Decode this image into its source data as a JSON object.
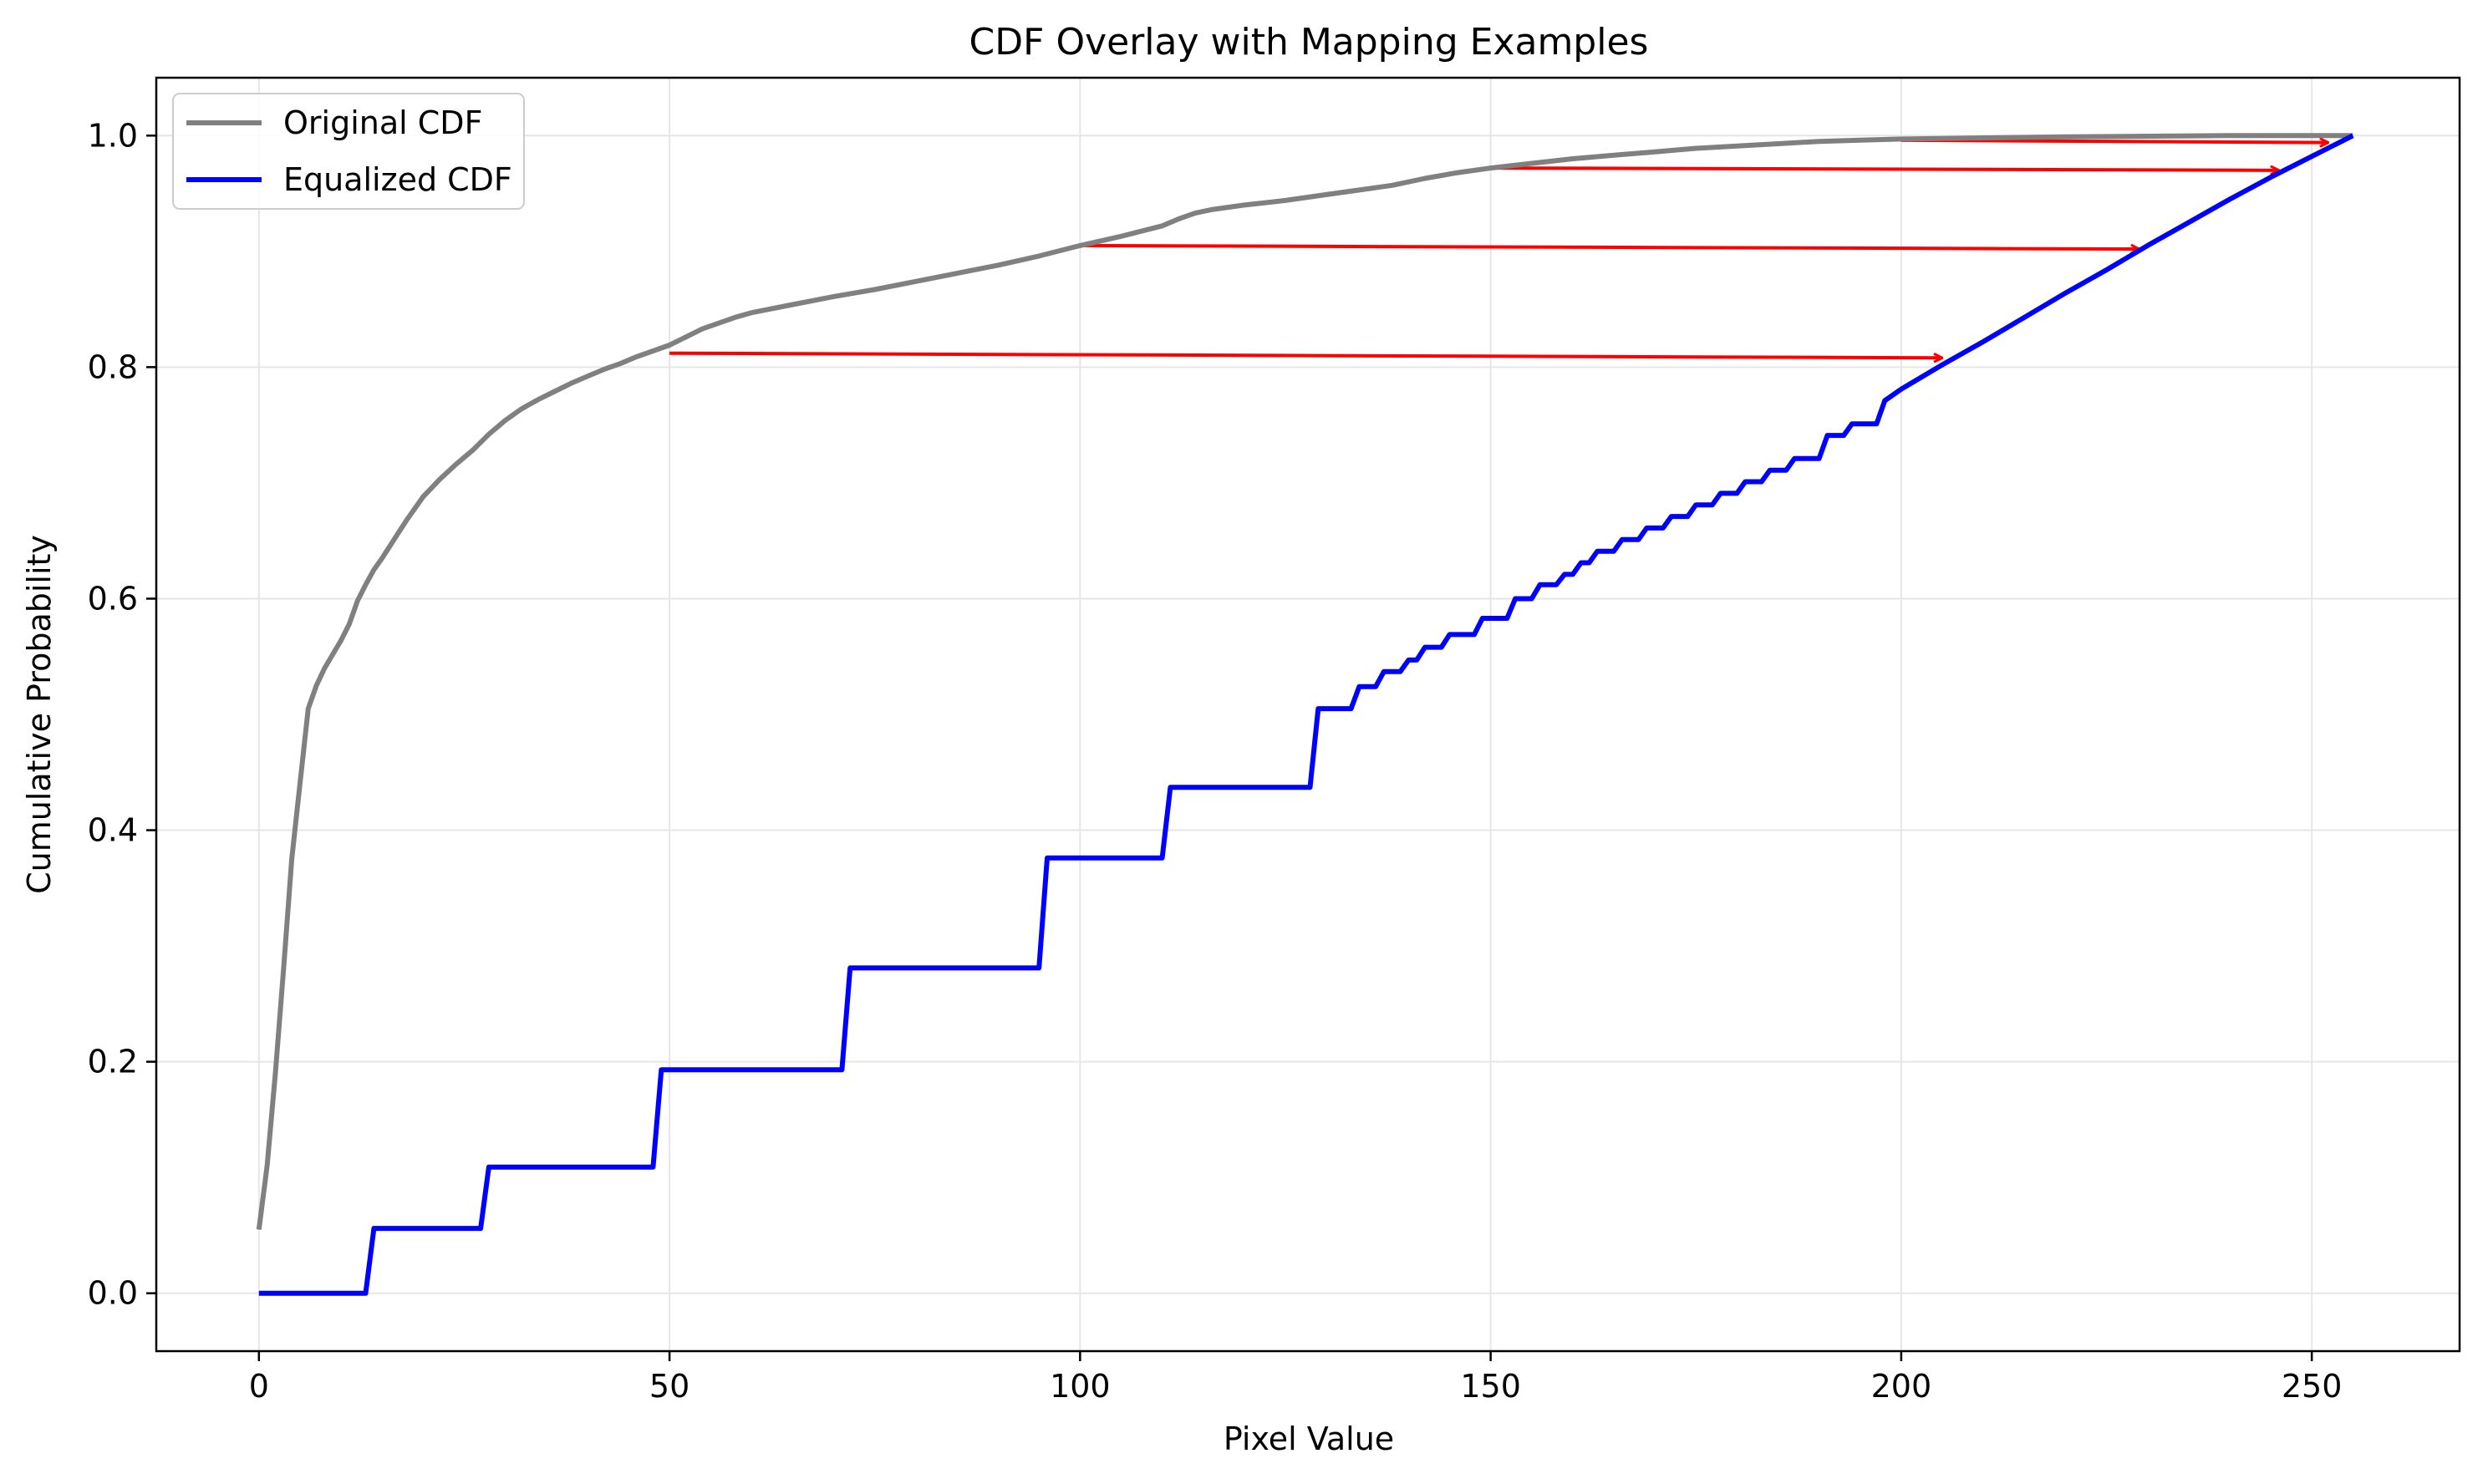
{
  "chart_data": {
    "type": "line",
    "title": "CDF Overlay with Mapping Examples",
    "xlabel": "Pixel Value",
    "ylabel": "Cumulative Probability",
    "xlim": [
      -12.5,
      268
    ],
    "ylim": [
      -0.05,
      1.05
    ],
    "xticks": [
      0,
      50,
      100,
      150,
      200,
      250
    ],
    "xtick_labels": [
      "0",
      "50",
      "100",
      "150",
      "200",
      "250"
    ],
    "yticks": [
      0.0,
      0.2,
      0.4,
      0.6,
      0.8,
      1.0
    ],
    "ytick_labels": [
      "0.0",
      "0.2",
      "0.4",
      "0.6",
      "0.8",
      "1.0"
    ],
    "grid": true,
    "legend_position": "top-left",
    "series": [
      {
        "name": "Original CDF",
        "color": "#808080",
        "x": [
          0,
          1,
          2,
          3,
          4,
          5,
          6,
          7,
          8,
          9,
          10,
          11,
          12,
          13,
          14,
          15,
          16,
          17,
          18,
          19,
          20,
          22,
          24,
          26,
          28,
          30,
          32,
          34,
          36,
          38,
          40,
          42,
          44,
          46,
          48,
          50,
          52,
          54,
          56,
          58,
          60,
          65,
          70,
          75,
          80,
          85,
          90,
          95,
          100,
          105,
          110,
          112,
          114,
          116,
          120,
          125,
          130,
          135,
          138,
          142,
          146,
          150,
          155,
          160,
          165,
          170,
          175,
          180,
          185,
          190,
          195,
          200,
          210,
          220,
          230,
          240,
          250,
          255
        ],
        "y": [
          0.055,
          0.11,
          0.19,
          0.28,
          0.375,
          0.44,
          0.505,
          0.525,
          0.54,
          0.552,
          0.564,
          0.578,
          0.598,
          0.612,
          0.625,
          0.635,
          0.646,
          0.657,
          0.668,
          0.678,
          0.688,
          0.703,
          0.716,
          0.728,
          0.742,
          0.754,
          0.764,
          0.772,
          0.779,
          0.786,
          0.792,
          0.798,
          0.803,
          0.809,
          0.814,
          0.819,
          0.826,
          0.833,
          0.838,
          0.843,
          0.847,
          0.854,
          0.861,
          0.867,
          0.874,
          0.881,
          0.888,
          0.896,
          0.905,
          0.913,
          0.922,
          0.928,
          0.933,
          0.936,
          0.94,
          0.944,
          0.949,
          0.954,
          0.957,
          0.963,
          0.968,
          0.972,
          0.976,
          0.98,
          0.983,
          0.986,
          0.989,
          0.991,
          0.993,
          0.995,
          0.996,
          0.997,
          0.998,
          0.999,
          0.9995,
          1.0,
          1.0,
          1.0
        ]
      },
      {
        "name": "Equalized CDF",
        "color": "#0000ff",
        "x": [
          0,
          13,
          14,
          27,
          28,
          48,
          49,
          71,
          72,
          95,
          96,
          110,
          111,
          128,
          129,
          133,
          134,
          136,
          137,
          139,
          140,
          141,
          142,
          144,
          145,
          148,
          149,
          152,
          153,
          155,
          156,
          158,
          159,
          160,
          161,
          162,
          163,
          165,
          166,
          168,
          169,
          171,
          172,
          174,
          175,
          177,
          178,
          180,
          181,
          183,
          184,
          186,
          187,
          190,
          191,
          193,
          194,
          197,
          198,
          200,
          205,
          210,
          215,
          220,
          225,
          230,
          235,
          240,
          245,
          250,
          255
        ],
        "y": [
          0.0,
          0.0,
          0.056,
          0.056,
          0.109,
          0.109,
          0.193,
          0.193,
          0.281,
          0.281,
          0.376,
          0.376,
          0.437,
          0.437,
          0.505,
          0.505,
          0.524,
          0.524,
          0.537,
          0.537,
          0.547,
          0.547,
          0.558,
          0.558,
          0.569,
          0.569,
          0.583,
          0.583,
          0.6,
          0.6,
          0.612,
          0.612,
          0.621,
          0.621,
          0.631,
          0.631,
          0.641,
          0.641,
          0.651,
          0.651,
          0.661,
          0.661,
          0.671,
          0.671,
          0.681,
          0.681,
          0.691,
          0.691,
          0.701,
          0.701,
          0.711,
          0.711,
          0.721,
          0.721,
          0.741,
          0.741,
          0.751,
          0.751,
          0.771,
          0.781,
          0.802,
          0.822,
          0.843,
          0.864,
          0.884,
          0.905,
          0.925,
          0.945,
          0.964,
          0.982,
          1.0
        ]
      }
    ],
    "annotations": [
      {
        "from": [
          50,
          0.812
        ],
        "to": [
          205,
          0.808
        ],
        "color": "#ff0000"
      },
      {
        "from": [
          100,
          0.905
        ],
        "to": [
          229,
          0.902
        ],
        "color": "#ff0000"
      },
      {
        "from": [
          150,
          0.972
        ],
        "to": [
          246,
          0.97
        ],
        "color": "#ff0000"
      },
      {
        "from": [
          200,
          0.996
        ],
        "to": [
          252,
          0.994
        ],
        "color": "#ff0000"
      }
    ]
  }
}
